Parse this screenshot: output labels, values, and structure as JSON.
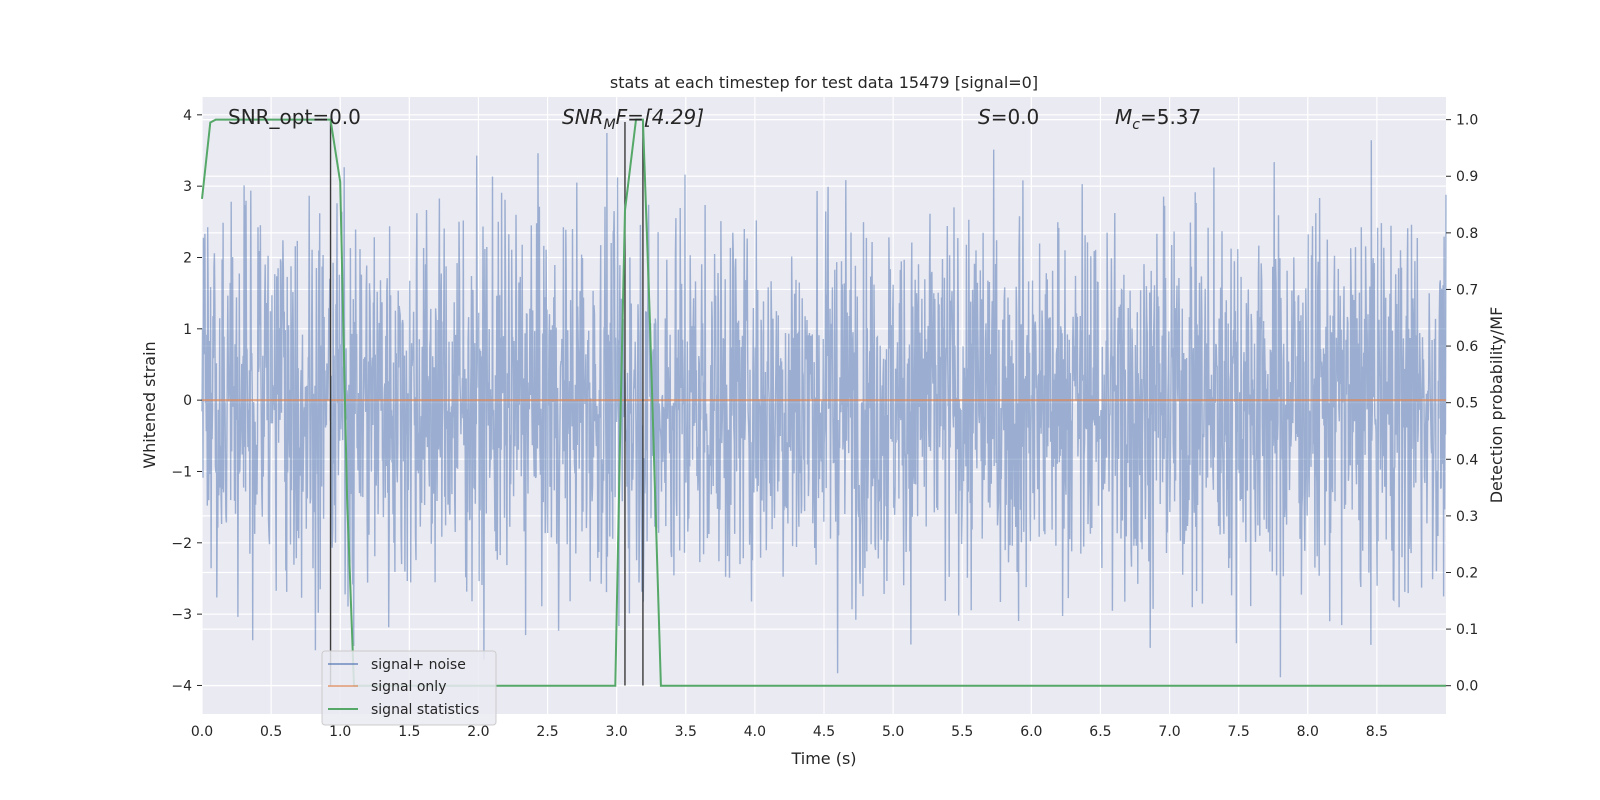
{
  "chart_data": {
    "type": "line",
    "title": "stats at each timestep for test data 15479 [signal=0]",
    "xlabel": "Time (s)",
    "ylabel": "Whitened strain",
    "y2label": "Detection probability/MF",
    "xlim": [
      0.0,
      9.0
    ],
    "ylim": [
      -4.4,
      4.25
    ],
    "y2lim": [
      -0.05,
      1.04
    ],
    "xticks": [
      "0.0",
      "0.5",
      "1.0",
      "1.5",
      "2.0",
      "2.5",
      "3.0",
      "3.5",
      "4.0",
      "4.5",
      "5.0",
      "5.5",
      "6.0",
      "6.5",
      "7.0",
      "7.5",
      "8.0",
      "8.5"
    ],
    "yticks": [
      "4",
      "3",
      "2",
      "1",
      "0",
      "−1",
      "−2",
      "−3",
      "−4"
    ],
    "y2ticks": [
      "1.0",
      "0.9",
      "0.8",
      "0.7",
      "0.6",
      "0.5",
      "0.4",
      "0.3",
      "0.2",
      "0.1",
      "0.0"
    ],
    "grid": true,
    "legend_position": "lower-left",
    "colors": {
      "signal_noise": "#4c72b0",
      "signal_only": "#dd8452",
      "signal_statistics": "#55a868",
      "vline": "#3a3a3a",
      "background": "#eaeaf2",
      "grid": "#ffffff"
    },
    "annotations": {
      "snr_opt": "SNR_opt=0.0",
      "snr_mf_sym": "SNR",
      "snr_mf_sub": "M",
      "snr_mf_rest": "F=[4.29]",
      "s_sym": "S",
      "s_rest": "=0.0",
      "mc_sym": "M",
      "mc_sub": "c",
      "mc_rest": "=5.37"
    },
    "vlines_x": [
      0.93,
      3.06,
      3.19
    ],
    "series": [
      {
        "name": "signal+ noise",
        "key": "signal_noise",
        "description": "whitened noise, approx. ±2.5 typical amplitude with spikes up to ±3.9",
        "amplitude": 1.3
      },
      {
        "name": "signal only",
        "key": "signal_only",
        "x": [
          0.0,
          9.0
        ],
        "y": [
          0.0,
          0.0
        ]
      },
      {
        "name": "signal statistics",
        "key": "signal_statistics",
        "axis": "right",
        "x": [
          0.0,
          0.06,
          0.1,
          0.2,
          0.5,
          0.8,
          0.93,
          1.0,
          1.05,
          1.1,
          1.2,
          1.5,
          1.8,
          2.0,
          2.5,
          2.99,
          3.03,
          3.06,
          3.1,
          3.14,
          3.19,
          3.24,
          3.32,
          3.6,
          4.0,
          5.0,
          6.0,
          7.0,
          8.0,
          9.0
        ],
        "y": [
          0.86,
          0.995,
          1.0,
          1.0,
          1.0,
          1.0,
          1.0,
          0.89,
          0.33,
          0.0,
          0.0,
          0.0,
          0.0,
          0.0,
          0.0,
          0.0,
          0.5,
          0.84,
          0.92,
          1.0,
          1.0,
          0.65,
          0.0,
          0.0,
          0.0,
          0.0,
          0.0,
          0.0,
          0.0,
          0.0
        ]
      }
    ]
  }
}
